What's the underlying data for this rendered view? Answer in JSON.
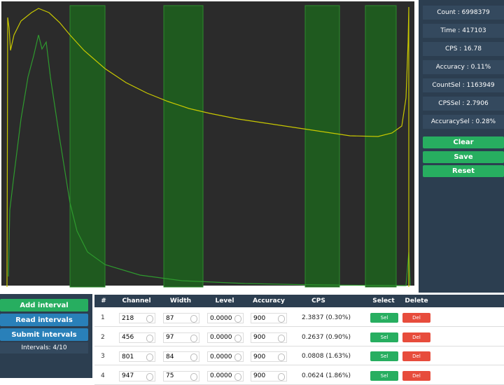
{
  "stats": [
    "Count : 6998379",
    "Time : 417103",
    "CPS : 16.78",
    "Accuracy : 0.11%",
    "CountSel : 1163949",
    "CPSSel : 2.7906",
    "AccuracySel : 0.28%"
  ],
  "actions": [
    "Clear",
    "Save",
    "Reset"
  ],
  "interval_buttons": [
    "Add interval",
    "Read intervals",
    "Submit intervals"
  ],
  "interval_status": "Intervals: 4/10",
  "table": {
    "header": [
      "#",
      "Channel",
      "Width",
      "Level",
      "Accuracy",
      "CPS",
      "Select",
      "Delete"
    ],
    "rows": [
      [
        "1",
        "218",
        "87",
        "0.0000",
        "900",
        "2.3837 (0.30%)",
        "Sel",
        "Del"
      ],
      [
        "2",
        "456",
        "97",
        "0.0000",
        "900",
        "0.2637 (0.90%)",
        "Sel",
        "Del"
      ],
      [
        "3",
        "801",
        "84",
        "0.0000",
        "900",
        "0.0808 (1.63%)",
        "Sel",
        "Del"
      ],
      [
        "4",
        "947",
        "75",
        "0.0000",
        "900",
        "0.0624 (1.86%)",
        "Sel",
        "Del"
      ]
    ]
  }
}
